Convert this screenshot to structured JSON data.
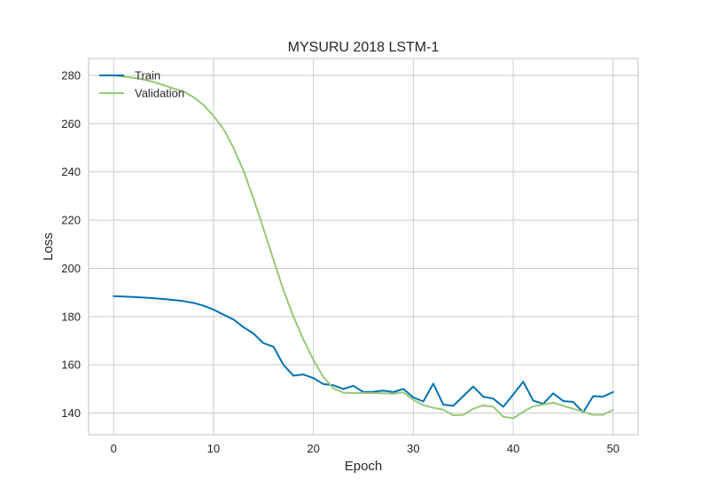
{
  "chart_data": {
    "type": "line",
    "title": "MYSURU 2018 LSTM-1",
    "xlabel": "Epoch",
    "ylabel": "Loss",
    "xlim": [
      -2.5,
      52.5
    ],
    "ylim": [
      131,
      287
    ],
    "xticks": [
      0,
      10,
      20,
      30,
      40,
      50
    ],
    "yticks": [
      140,
      160,
      180,
      200,
      220,
      240,
      260,
      280
    ],
    "grid": true,
    "legend_position": "top-left",
    "x": [
      0,
      1,
      2,
      3,
      4,
      5,
      6,
      7,
      8,
      9,
      10,
      11,
      12,
      13,
      14,
      15,
      16,
      17,
      18,
      19,
      20,
      21,
      22,
      23,
      24,
      25,
      26,
      27,
      28,
      29,
      30,
      31,
      32,
      33,
      34,
      35,
      36,
      37,
      38,
      39,
      40,
      41,
      42,
      43,
      44,
      45,
      46,
      47,
      48,
      49,
      50
    ],
    "series": [
      {
        "name": "Train",
        "color": "#0072B2",
        "values": [
          188.5,
          188.3,
          188.1,
          187.9,
          187.6,
          187.3,
          186.9,
          186.4,
          185.7,
          184.5,
          182.9,
          180.8,
          178.8,
          175.6,
          173.0,
          169.0,
          167.5,
          160.0,
          155.5,
          156.0,
          154.5,
          152.0,
          151.5,
          150.0,
          151.3,
          148.7,
          148.8,
          149.3,
          148.7,
          150.0,
          146.5,
          144.8,
          152.2,
          143.5,
          143.0,
          147.0,
          151.0,
          146.8,
          146.0,
          142.6,
          147.7,
          153.0,
          145.2,
          143.8,
          148.2,
          145.0,
          144.6,
          140.3,
          147.0,
          146.8,
          148.7
        ]
      },
      {
        "name": "Validation",
        "color": "#98C878",
        "values": [
          280.0,
          279.5,
          279.0,
          278.3,
          277.3,
          276.0,
          274.6,
          273.4,
          271.0,
          267.8,
          263.2,
          257.8,
          250.0,
          240.5,
          229.0,
          216.5,
          203.5,
          191.0,
          180.0,
          170.5,
          162.0,
          155.0,
          150.2,
          148.5,
          148.3,
          148.3,
          148.3,
          148.2,
          148.0,
          148.6,
          145.5,
          143.3,
          142.2,
          141.4,
          139.1,
          139.2,
          141.8,
          143.2,
          142.6,
          138.5,
          137.8,
          140.5,
          142.8,
          143.5,
          144.3,
          143.0,
          141.8,
          140.5,
          139.3,
          139.3,
          141.3
        ]
      }
    ]
  }
}
